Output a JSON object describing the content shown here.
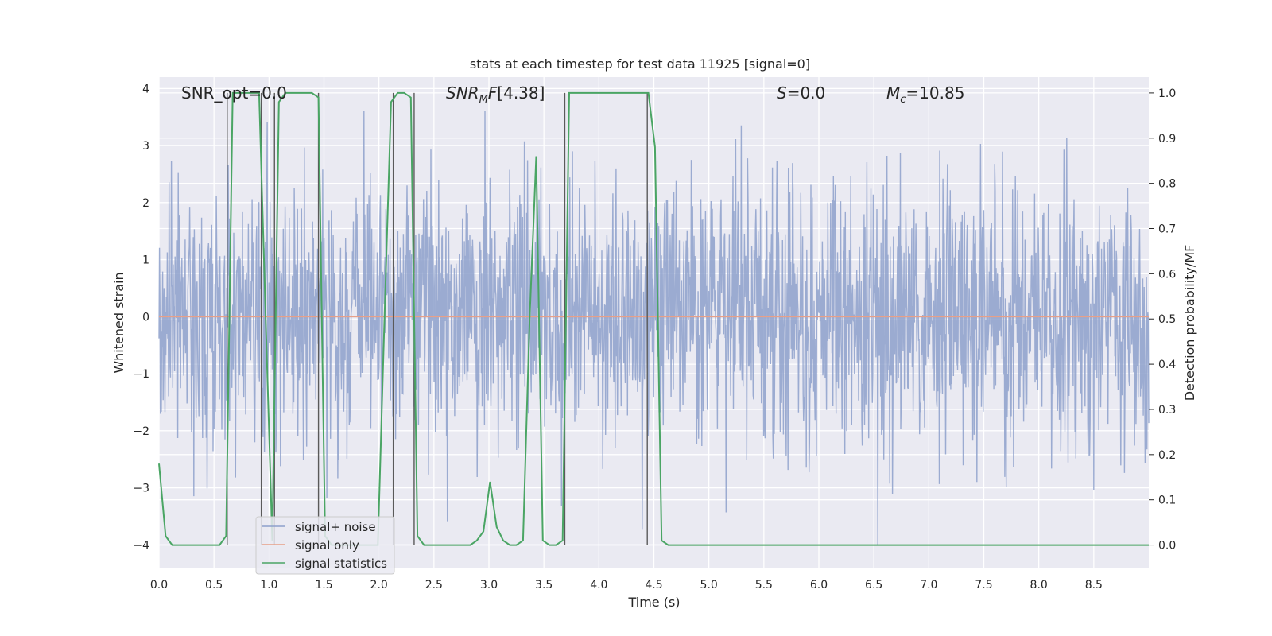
{
  "chart_data": {
    "type": "line",
    "title": "stats at each timestep for test data 11925 [signal=0]",
    "xlabel": "Time (s)",
    "ylabel_left": "Whitened strain",
    "ylabel_right": "Detection probability/MF",
    "xlim": [
      0.0,
      9.0
    ],
    "ylim_left": [
      -4.4,
      4.2
    ],
    "ylim_right": [
      -0.05,
      1.035
    ],
    "x_ticks": [
      "0.0",
      "0.5",
      "1.0",
      "1.5",
      "2.0",
      "2.5",
      "3.0",
      "3.5",
      "4.0",
      "4.5",
      "5.0",
      "5.5",
      "6.0",
      "6.5",
      "7.0",
      "7.5",
      "8.0",
      "8.5"
    ],
    "y_left_ticks": [
      "4",
      "3",
      "2",
      "1",
      "0",
      "−1",
      "−2",
      "−3",
      "−4"
    ],
    "y_right_ticks": [
      "1.0",
      "0.9",
      "0.8",
      "0.7",
      "0.6",
      "0.5",
      "0.4",
      "0.3",
      "0.2",
      "0.1",
      "0.0"
    ],
    "grid": true,
    "legend_position": "bottom-left",
    "annotations": {
      "snr_opt": "SNR_opt=0.0",
      "snr_mf": "[4.38]",
      "s": "=0.0",
      "mc": "=10.85"
    },
    "series": [
      {
        "name": "signal+ noise",
        "axis": "left",
        "color": "#8da0cb",
        "description_range": [
          -4.0,
          3.6
        ],
        "sample_rate_hz": 200
      },
      {
        "name": "signal only",
        "axis": "left",
        "color": "#e8a088",
        "x": [
          0.0,
          9.0
        ],
        "y": [
          0.0,
          0.0
        ]
      },
      {
        "name": "signal statistics",
        "axis": "right",
        "color": "#4aa564",
        "x": [
          0.0,
          0.06,
          0.12,
          0.24,
          0.36,
          0.48,
          0.55,
          0.61,
          0.67,
          0.73,
          0.85,
          0.91,
          0.97,
          1.03,
          1.09,
          1.15,
          1.21,
          1.33,
          1.39,
          1.45,
          1.51,
          1.57,
          1.63,
          1.75,
          1.87,
          1.99,
          2.05,
          2.11,
          2.17,
          2.23,
          2.29,
          2.35,
          2.41,
          2.47,
          2.59,
          2.71,
          2.83,
          2.89,
          2.95,
          3.01,
          3.07,
          3.13,
          3.19,
          3.25,
          3.31,
          3.37,
          3.43,
          3.49,
          3.55,
          3.61,
          3.67,
          3.73,
          3.85,
          3.97,
          4.09,
          4.21,
          4.33,
          4.45,
          4.51,
          4.57,
          4.63,
          4.69,
          5.0,
          6.0,
          7.0,
          8.0,
          9.0
        ],
        "y": [
          0.18,
          0.02,
          0.0,
          0.0,
          0.0,
          0.0,
          0.0,
          0.02,
          1.0,
          1.0,
          1.0,
          1.0,
          0.5,
          0.01,
          0.98,
          1.0,
          1.0,
          1.0,
          1.0,
          0.99,
          0.02,
          0.0,
          0.0,
          0.0,
          0.0,
          0.0,
          0.5,
          0.98,
          1.0,
          1.0,
          0.99,
          0.02,
          0.0,
          0.0,
          0.0,
          0.0,
          0.0,
          0.01,
          0.03,
          0.14,
          0.04,
          0.01,
          0.0,
          0.0,
          0.01,
          0.5,
          0.86,
          0.01,
          0.0,
          0.0,
          0.01,
          1.0,
          1.0,
          1.0,
          1.0,
          1.0,
          1.0,
          1.0,
          0.88,
          0.01,
          0.0,
          0.0,
          0.0,
          0.0,
          0.0,
          0.0,
          0.0
        ]
      }
    ],
    "vertical_lines_x": [
      0.62,
      0.93,
      1.05,
      1.45,
      2.13,
      2.32,
      3.69,
      4.44
    ]
  }
}
